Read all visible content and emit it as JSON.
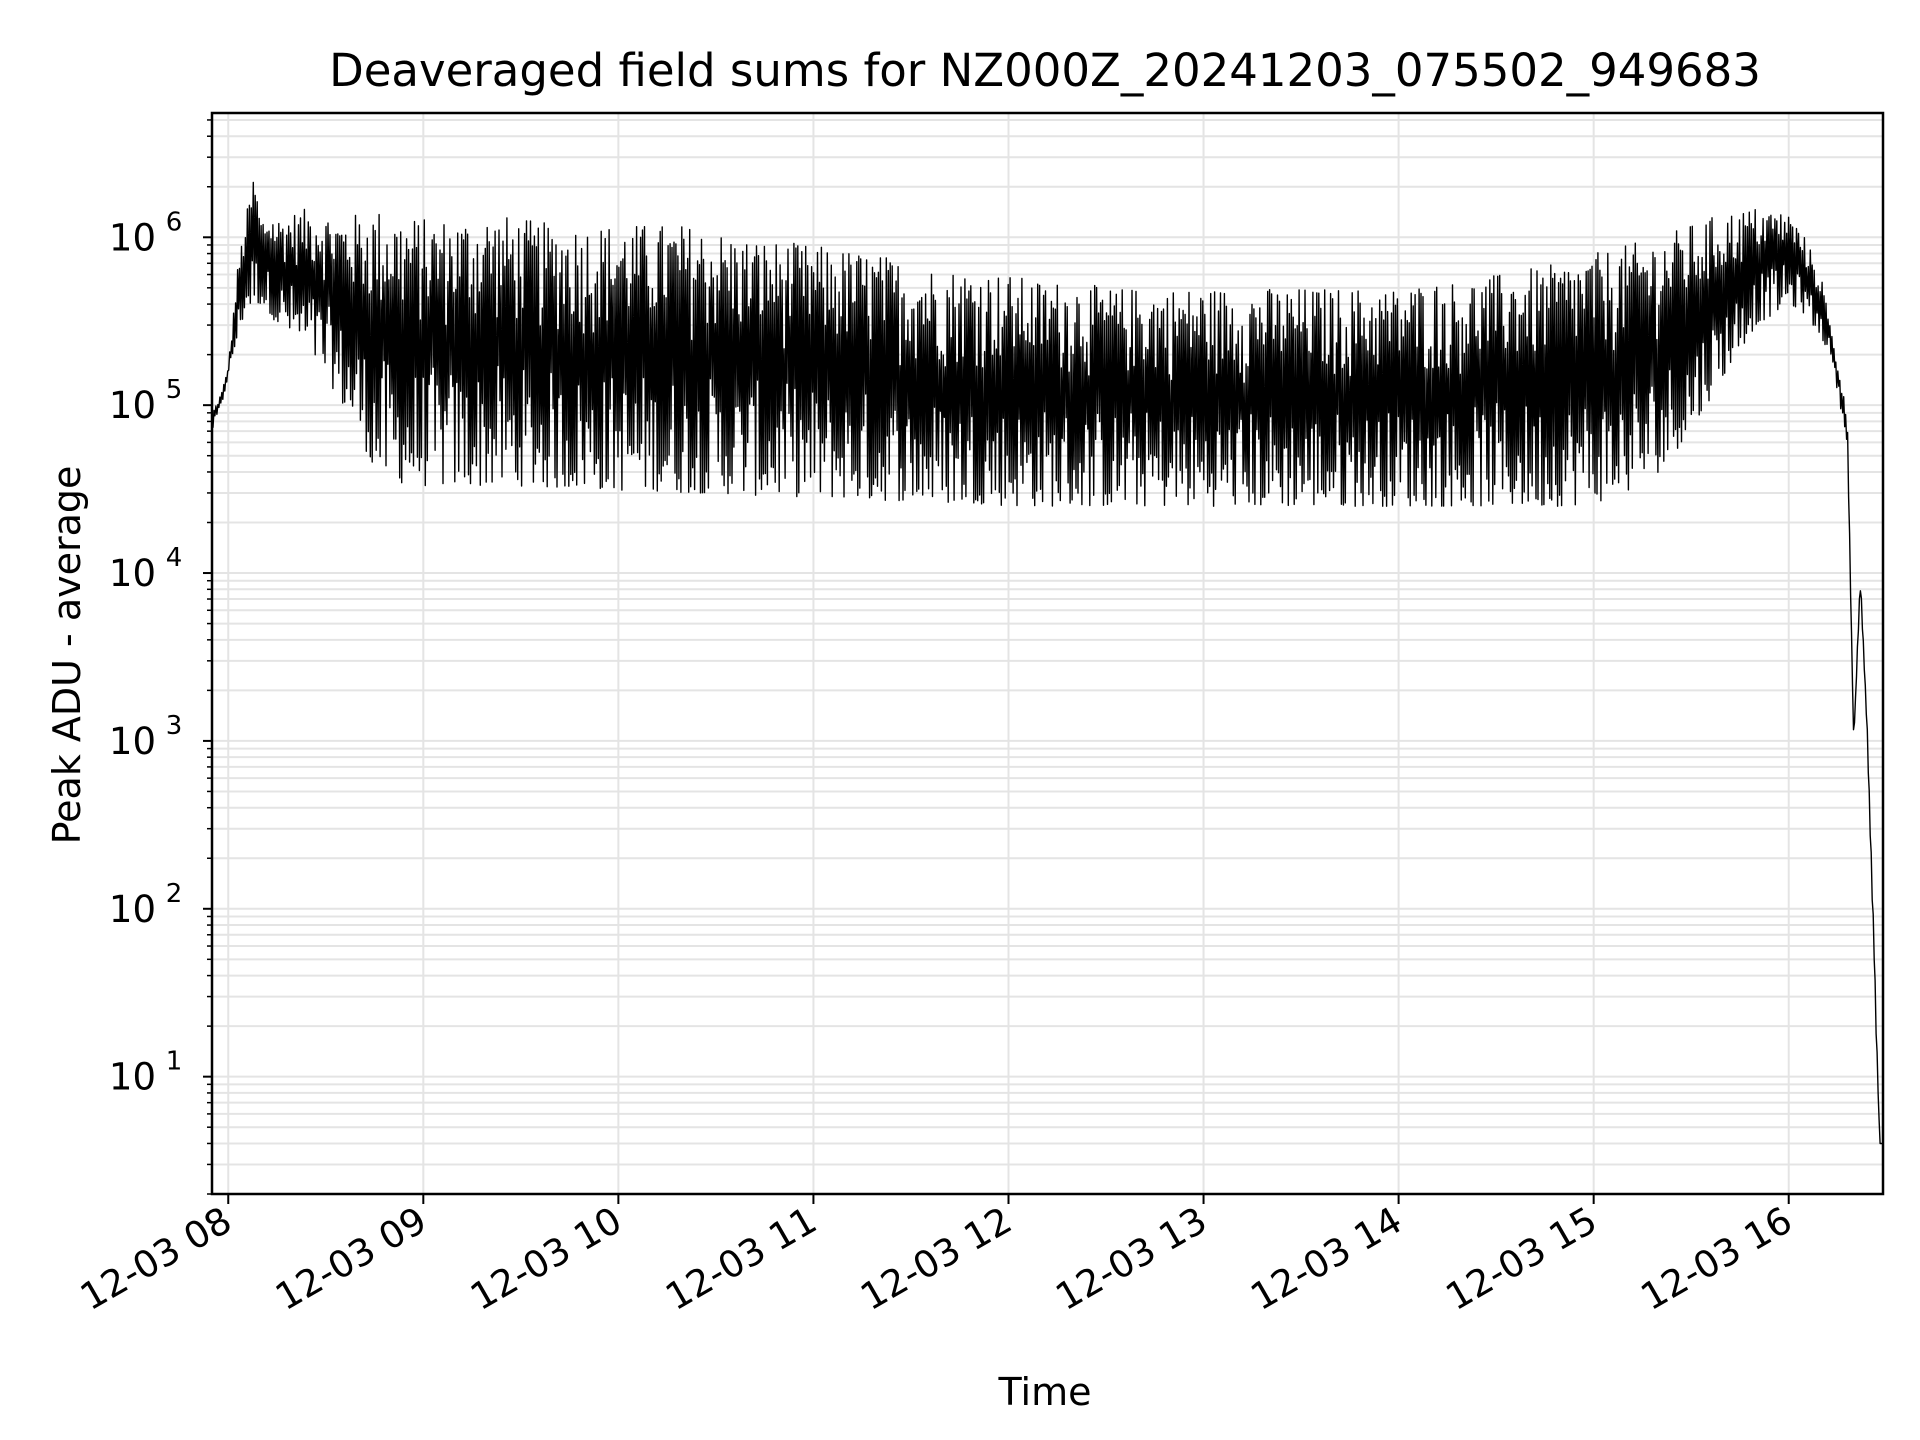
{
  "chart_data": {
    "type": "line",
    "title": "Deaveraged field sums for NZ000Z_20241203_075502_949683",
    "xlabel": "Time",
    "ylabel": "Peak ADU - average",
    "yscale": "log",
    "grid": true,
    "line_color": "#000000",
    "grid_color": "#e4e4e4",
    "xlim": [
      "2024-12-03 07:55",
      "2024-12-03 16:29"
    ],
    "ylim": [
      2,
      5500000
    ],
    "x_ticks": [
      {
        "value": "2024-12-03 08:00",
        "label": "12-03 08"
      },
      {
        "value": "2024-12-03 09:00",
        "label": "12-03 09"
      },
      {
        "value": "2024-12-03 10:00",
        "label": "12-03 10"
      },
      {
        "value": "2024-12-03 11:00",
        "label": "12-03 11"
      },
      {
        "value": "2024-12-03 12:00",
        "label": "12-03 12"
      },
      {
        "value": "2024-12-03 13:00",
        "label": "12-03 13"
      },
      {
        "value": "2024-12-03 14:00",
        "label": "12-03 14"
      },
      {
        "value": "2024-12-03 15:00",
        "label": "12-03 15"
      },
      {
        "value": "2024-12-03 16:00",
        "label": "12-03 16"
      }
    ],
    "y_ticks": [
      {
        "value": 10,
        "base": "10",
        "exp": "1"
      },
      {
        "value": 100,
        "base": "10",
        "exp": "2"
      },
      {
        "value": 1000,
        "base": "10",
        "exp": "3"
      },
      {
        "value": 10000,
        "base": "10",
        "exp": "4"
      },
      {
        "value": 100000,
        "base": "10",
        "exp": "5"
      },
      {
        "value": 1000000,
        "base": "10",
        "exp": "6"
      }
    ],
    "series": [
      {
        "x": [
          "2024-12-03 07:55",
          "2024-12-03 07:58",
          "2024-12-03 08:00",
          "2024-12-03 08:03",
          "2024-12-03 08:05",
          "2024-12-03 08:08",
          "2024-12-03 08:10",
          "2024-12-03 08:13",
          "2024-12-03 08:15",
          "2024-12-03 08:20",
          "2024-12-03 08:25",
          "2024-12-03 08:30",
          "2024-12-03 08:35",
          "2024-12-03 08:40",
          "2024-12-03 08:45",
          "2024-12-03 08:50",
          "2024-12-03 09:00",
          "2024-12-03 09:10",
          "2024-12-03 09:20",
          "2024-12-03 09:30",
          "2024-12-03 09:40",
          "2024-12-03 09:50",
          "2024-12-03 10:00",
          "2024-12-03 10:10",
          "2024-12-03 10:20",
          "2024-12-03 10:30",
          "2024-12-03 10:40",
          "2024-12-03 10:50",
          "2024-12-03 11:00",
          "2024-12-03 11:10",
          "2024-12-03 11:20",
          "2024-12-03 11:30",
          "2024-12-03 11:40",
          "2024-12-03 11:50",
          "2024-12-03 12:00",
          "2024-12-03 12:10",
          "2024-12-03 12:20",
          "2024-12-03 12:30",
          "2024-12-03 12:40",
          "2024-12-03 12:50",
          "2024-12-03 13:00",
          "2024-12-03 13:10",
          "2024-12-03 13:20",
          "2024-12-03 13:30",
          "2024-12-03 13:40",
          "2024-12-03 13:50",
          "2024-12-03 14:00",
          "2024-12-03 14:10",
          "2024-12-03 14:20",
          "2024-12-03 14:30",
          "2024-12-03 14:40",
          "2024-12-03 14:50",
          "2024-12-03 15:00",
          "2024-12-03 15:10",
          "2024-12-03 15:20",
          "2024-12-03 15:30",
          "2024-12-03 15:40",
          "2024-12-03 15:50",
          "2024-12-03 16:00",
          "2024-12-03 16:05",
          "2024-12-03 16:10",
          "2024-12-03 16:13",
          "2024-12-03 16:15",
          "2024-12-03 16:18",
          "2024-12-03 16:20",
          "2024-12-03 16:22",
          "2024-12-03 16:24",
          "2024-12-03 16:26",
          "2024-12-03 16:27",
          "2024-12-03 16:28",
          "2024-12-03 16:29"
        ],
        "upper": [
          90000,
          120000,
          170000,
          700000,
          1200000,
          2500000,
          1300000,
          1400000,
          1300000,
          1400000,
          1500000,
          1400000,
          1300000,
          1400000,
          1500000,
          1400000,
          1300000,
          1300000,
          1400000,
          1300000,
          1200000,
          1200000,
          1200000,
          1200000,
          1200000,
          1100000,
          1000000,
          950000,
          900000,
          850000,
          800000,
          700000,
          650000,
          650000,
          600000,
          550000,
          550000,
          500000,
          500000,
          500000,
          500000,
          500000,
          500000,
          500000,
          500000,
          500000,
          500000,
          550000,
          550000,
          600000,
          650000,
          700000,
          800000,
          900000,
          1000000,
          1200000,
          1400000,
          1500000,
          1400000,
          1000000,
          600000,
          280000,
          180000,
          90000,
          1000,
          10000,
          1500,
          90,
          20,
          4,
          4
        ],
        "lower": [
          70000,
          100000,
          150000,
          250000,
          350000,
          400000,
          400000,
          350000,
          300000,
          250000,
          200000,
          150000,
          100000,
          70000,
          40000,
          35000,
          33000,
          33000,
          33000,
          33000,
          32000,
          32000,
          31000,
          31000,
          30000,
          30000,
          29000,
          29000,
          28000,
          28000,
          27000,
          27000,
          26000,
          26000,
          25000,
          25000,
          25000,
          25000,
          25000,
          25000,
          25000,
          25000,
          25000,
          25000,
          25000,
          25000,
          25000,
          25000,
          25000,
          25000,
          25000,
          25000,
          26000,
          30000,
          40000,
          70000,
          150000,
          300000,
          400000,
          350000,
          250000,
          200000,
          120000,
          60000,
          1000,
          8000,
          1200,
          70,
          15,
          4,
          4
        ]
      }
    ]
  }
}
